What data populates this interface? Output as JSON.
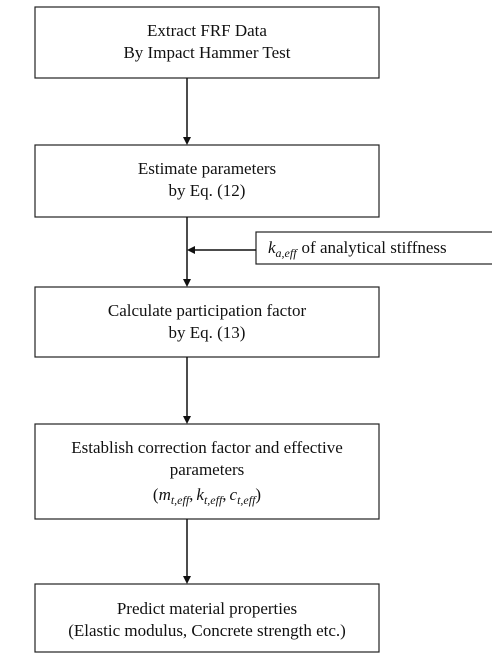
{
  "nodes": [
    {
      "lines": [
        "Extract FRF Data",
        "By Impact Hammer Test"
      ]
    },
    {
      "lines": [
        "Estimate parameters",
        "by Eq. (12)"
      ]
    },
    {
      "lines": [
        "Calculate participation factor",
        "by Eq. (13)"
      ]
    },
    {
      "lines": [
        "Establish correction factor and effective",
        "parameters"
      ],
      "formula": {
        "open": "(",
        "separator": ",",
        "close": ")",
        "terms": [
          {
            "symbol": "m",
            "subscript": "t,eff"
          },
          {
            "symbol": "k",
            "subscript": "t,eff"
          },
          {
            "symbol": "c",
            "subscript": "t,eff"
          }
        ]
      }
    },
    {
      "lines": [
        "Predict material properties",
        "(Elastic modulus, Concrete strength etc.)"
      ]
    }
  ],
  "side_input": {
    "symbol": "k",
    "subscript": "a,eff",
    "text": "of analytical stiffness"
  }
}
